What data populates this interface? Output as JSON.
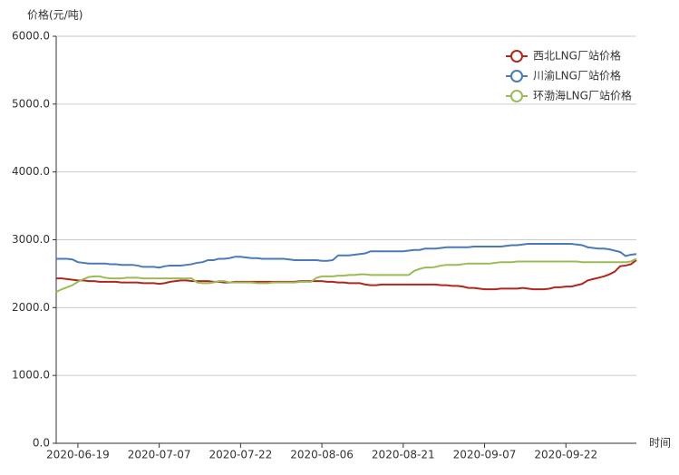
{
  "chart_data": {
    "type": "line",
    "y_axis_label": "价格(元/吨)",
    "x_axis_label": "时间",
    "categories": [
      null,
      null,
      null,
      null,
      "2020-06-19",
      null,
      null,
      null,
      null,
      null,
      null,
      null,
      null,
      null,
      null,
      null,
      null,
      null,
      null,
      "2020-07-07",
      null,
      null,
      null,
      null,
      null,
      null,
      null,
      null,
      null,
      null,
      null,
      null,
      null,
      null,
      "2020-07-22",
      null,
      null,
      null,
      null,
      null,
      null,
      null,
      null,
      null,
      null,
      null,
      null,
      null,
      null,
      "2020-08-06",
      null,
      null,
      null,
      null,
      null,
      null,
      null,
      null,
      null,
      null,
      null,
      null,
      null,
      null,
      "2020-08-21",
      null,
      null,
      null,
      null,
      null,
      null,
      null,
      null,
      null,
      null,
      null,
      null,
      null,
      null,
      "2020-09-07",
      null,
      null,
      null,
      null,
      null,
      null,
      null,
      null,
      null,
      null,
      null,
      null,
      null,
      null,
      "2020-09-22",
      null,
      null,
      null,
      null,
      null,
      null,
      null,
      null,
      null,
      null,
      null,
      null,
      null
    ],
    "series": [
      {
        "name": "西北LNG厂站价格",
        "color": "#b3261e",
        "values": [
          2430,
          2430,
          2420,
          2410,
          2400,
          2400,
          2390,
          2390,
          2380,
          2380,
          2380,
          2380,
          2370,
          2370,
          2370,
          2370,
          2360,
          2360,
          2360,
          2350,
          2360,
          2380,
          2390,
          2400,
          2400,
          2390,
          2390,
          2390,
          2390,
          2380,
          2380,
          2370,
          2370,
          2380,
          2380,
          2380,
          2380,
          2380,
          2380,
          2380,
          2380,
          2380,
          2380,
          2380,
          2380,
          2390,
          2390,
          2390,
          2390,
          2390,
          2380,
          2380,
          2370,
          2370,
          2360,
          2360,
          2360,
          2340,
          2330,
          2330,
          2340,
          2340,
          2340,
          2340,
          2340,
          2340,
          2340,
          2340,
          2340,
          2340,
          2340,
          2330,
          2330,
          2320,
          2320,
          2310,
          2290,
          2290,
          2280,
          2270,
          2270,
          2270,
          2280,
          2280,
          2280,
          2280,
          2290,
          2280,
          2270,
          2270,
          2270,
          2280,
          2300,
          2300,
          2310,
          2310,
          2330,
          2350,
          2400,
          2420,
          2440,
          2460,
          2490,
          2530,
          2610,
          2620,
          2640,
          2700
        ]
      },
      {
        "name": "川渝LNG厂站价格",
        "color": "#4a7ab8",
        "values": [
          2720,
          2720,
          2720,
          2710,
          2670,
          2660,
          2650,
          2650,
          2650,
          2650,
          2640,
          2640,
          2630,
          2630,
          2630,
          2620,
          2600,
          2600,
          2600,
          2590,
          2610,
          2620,
          2620,
          2620,
          2630,
          2640,
          2660,
          2670,
          2700,
          2700,
          2720,
          2720,
          2730,
          2750,
          2750,
          2740,
          2730,
          2730,
          2720,
          2720,
          2720,
          2720,
          2720,
          2710,
          2700,
          2700,
          2700,
          2700,
          2700,
          2690,
          2690,
          2700,
          2770,
          2770,
          2770,
          2780,
          2790,
          2800,
          2830,
          2830,
          2830,
          2830,
          2830,
          2830,
          2830,
          2840,
          2850,
          2850,
          2870,
          2870,
          2870,
          2880,
          2890,
          2890,
          2890,
          2890,
          2890,
          2900,
          2900,
          2900,
          2900,
          2900,
          2900,
          2910,
          2920,
          2920,
          2930,
          2940,
          2940,
          2940,
          2940,
          2940,
          2940,
          2940,
          2940,
          2940,
          2930,
          2920,
          2890,
          2880,
          2870,
          2870,
          2860,
          2840,
          2820,
          2760,
          2780,
          2790
        ]
      },
      {
        "name": "环渤海LNG厂站价格",
        "color": "#9bbb59",
        "values": [
          2230,
          2270,
          2300,
          2330,
          2380,
          2420,
          2450,
          2460,
          2460,
          2440,
          2430,
          2430,
          2430,
          2440,
          2440,
          2440,
          2430,
          2430,
          2430,
          2430,
          2430,
          2430,
          2430,
          2430,
          2430,
          2430,
          2370,
          2360,
          2360,
          2370,
          2390,
          2390,
          2370,
          2370,
          2370,
          2370,
          2370,
          2360,
          2360,
          2360,
          2370,
          2370,
          2370,
          2370,
          2370,
          2380,
          2380,
          2380,
          2440,
          2460,
          2460,
          2460,
          2470,
          2470,
          2480,
          2480,
          2490,
          2490,
          2480,
          2480,
          2480,
          2480,
          2480,
          2480,
          2480,
          2480,
          2540,
          2570,
          2590,
          2590,
          2600,
          2620,
          2630,
          2630,
          2630,
          2640,
          2650,
          2650,
          2650,
          2650,
          2650,
          2660,
          2670,
          2670,
          2670,
          2680,
          2680,
          2680,
          2680,
          2680,
          2680,
          2680,
          2680,
          2680,
          2680,
          2680,
          2680,
          2670,
          2670,
          2670,
          2670,
          2670,
          2670,
          2670,
          2670,
          2670,
          2680,
          2720
        ]
      }
    ],
    "ylim": [
      0,
      6000
    ],
    "yticks": [
      {
        "value": 0,
        "label": "0.0"
      },
      {
        "value": 1000,
        "label": "1000.0"
      },
      {
        "value": 2000,
        "label": "2000.0"
      },
      {
        "value": 3000,
        "label": "3000.0"
      },
      {
        "value": 4000,
        "label": "4000.0"
      },
      {
        "value": 5000,
        "label": "5000.0"
      },
      {
        "value": 6000,
        "label": "6000.0"
      }
    ],
    "grid": true,
    "legend_position": "upper right"
  }
}
